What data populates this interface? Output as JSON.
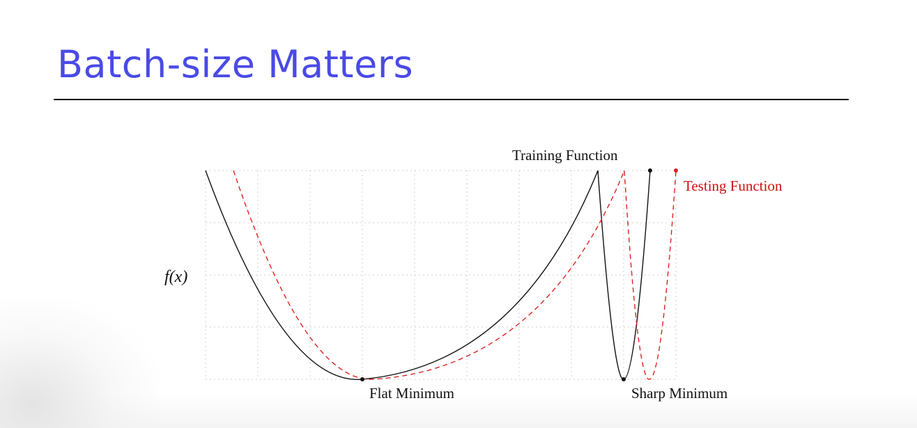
{
  "slide": {
    "title": "Batch-size Matters"
  },
  "diagram": {
    "y_axis_label": "f(x)",
    "training_label": "Training Function",
    "testing_label": "Testing Function",
    "flat_min_label": "Flat Minimum",
    "sharp_min_label": "Sharp Minimum",
    "colors": {
      "training": "#111111",
      "testing": "#dd2222",
      "grid": "#cfcfcf",
      "title": "#4a4ae6"
    }
  }
}
